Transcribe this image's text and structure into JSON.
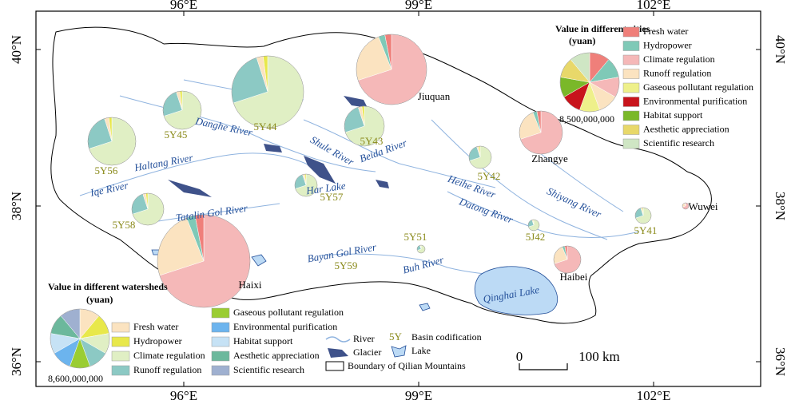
{
  "axes": {
    "top": [
      "96°E",
      "99°E",
      "102°E"
    ],
    "bottom": [
      "96°E",
      "99°E",
      "102°E"
    ],
    "left": [
      "40°N",
      "38°N",
      "36°N"
    ],
    "right": [
      "40°N",
      "38°N",
      "36°N"
    ]
  },
  "city_legend": {
    "title": "Value in different cities",
    "unit": "(yuan)",
    "scale": "8,500,000,000",
    "items": [
      {
        "name": "Fresh water",
        "color": "#ef7f7a"
      },
      {
        "name": "Hydropower",
        "color": "#7fc9b7"
      },
      {
        "name": "Climate regulation",
        "color": "#f5b8b8"
      },
      {
        "name": "Runoff regulation",
        "color": "#fbe3c0"
      },
      {
        "name": "Gaseous pollutant regulation",
        "color": "#eef08a"
      },
      {
        "name": "Environmental purification",
        "color": "#c8141c"
      },
      {
        "name": "Habitat support",
        "color": "#7ab829"
      },
      {
        "name": "Aesthetic appreciation",
        "color": "#e8d86a"
      },
      {
        "name": "Scientific research",
        "color": "#cfe6c4"
      }
    ]
  },
  "watershed_legend": {
    "title": "Value in different watersheds",
    "unit": "(yuan)",
    "scale": "8,600,000,000",
    "items": [
      {
        "name": "Fresh water",
        "color": "#fbe3c0"
      },
      {
        "name": "Hydropower",
        "color": "#e8e84a"
      },
      {
        "name": "Climate regulation",
        "color": "#e0efc4"
      },
      {
        "name": "Runoff regulation",
        "color": "#8cc9c4"
      },
      {
        "name": "Gaseous pollutant regulation",
        "color": "#9acd32"
      },
      {
        "name": "Environmental purification",
        "color": "#6cb4ee"
      },
      {
        "name": "Habitat support",
        "color": "#c6e2f5"
      },
      {
        "name": "Aesthetic appreciation",
        "color": "#6cb89c"
      },
      {
        "name": "Scientific research",
        "color": "#9fb0d0"
      }
    ]
  },
  "map_legend": {
    "river": "River",
    "glacier": "Glacier",
    "lake": "Lake",
    "basin_code": "5Y",
    "basin_text": "Basin codification",
    "boundary": "Boundary of Qilian Mountains"
  },
  "scale_bar": {
    "start": "0",
    "end": "100 km"
  },
  "rivers": [
    "Danghe River",
    "Haltang River",
    "Iqe River",
    "Tatalin Gol River",
    "Shule River",
    "Beida River",
    "Har Lake",
    "Heihe River",
    "Datong River",
    "Shiyang River",
    "Bayan Gol River",
    "Buh River",
    "Qinghai Lake"
  ],
  "basins": [
    "5Y44",
    "5Y45",
    "5Y56",
    "5Y43",
    "5Y42",
    "5Y57",
    "5Y58",
    "5Y51",
    "5Y59",
    "5J42",
    "5Y41"
  ],
  "cities": [
    "Jiuquan",
    "Zhangye",
    "Wuwei",
    "Haibei",
    "Haixi"
  ]
}
